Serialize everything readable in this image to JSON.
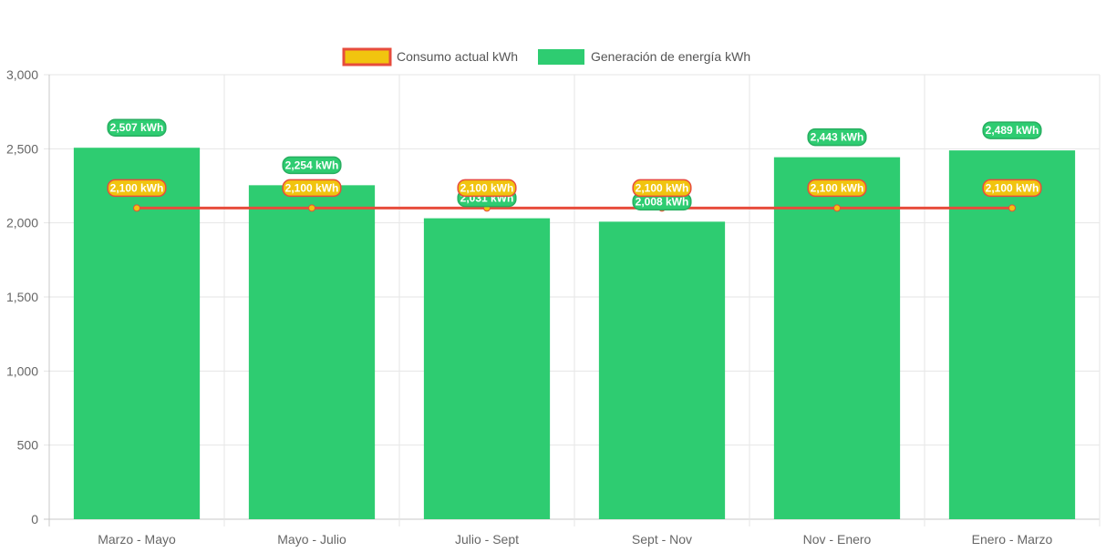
{
  "chart_data": {
    "type": "bar",
    "categories": [
      "Marzo - Mayo",
      "Mayo - Julio",
      "Julio - Sept",
      "Sept - Nov",
      "Nov - Enero",
      "Enero - Marzo"
    ],
    "series": [
      {
        "name": "Consumo actual kWh",
        "type": "line",
        "values": [
          2100,
          2100,
          2100,
          2100,
          2100,
          2100
        ],
        "data_labels": [
          "2,100 kWh",
          "2,100 kWh",
          "2,100 kWh",
          "2,100 kWh",
          "2,100 kWh",
          "2,100 kWh"
        ],
        "line_color": "#e74c3c",
        "fill_color": "#f1c40f"
      },
      {
        "name": "Generación de energía kWh",
        "type": "bar",
        "values": [
          2507,
          2254,
          2031,
          2008,
          2443,
          2489
        ],
        "data_labels": [
          "2,507 kWh",
          "2,254 kWh",
          "2,031 kWh",
          "2,008 kWh",
          "2,443 kWh",
          "2,489 kWh"
        ],
        "color": "#2ecc71"
      }
    ],
    "y_ticks": [
      "0",
      "500",
      "1,000",
      "1,500",
      "2,000",
      "2,500",
      "3,000"
    ],
    "ylim": [
      0,
      3000
    ],
    "grid": true,
    "legend_position": "top-center"
  }
}
